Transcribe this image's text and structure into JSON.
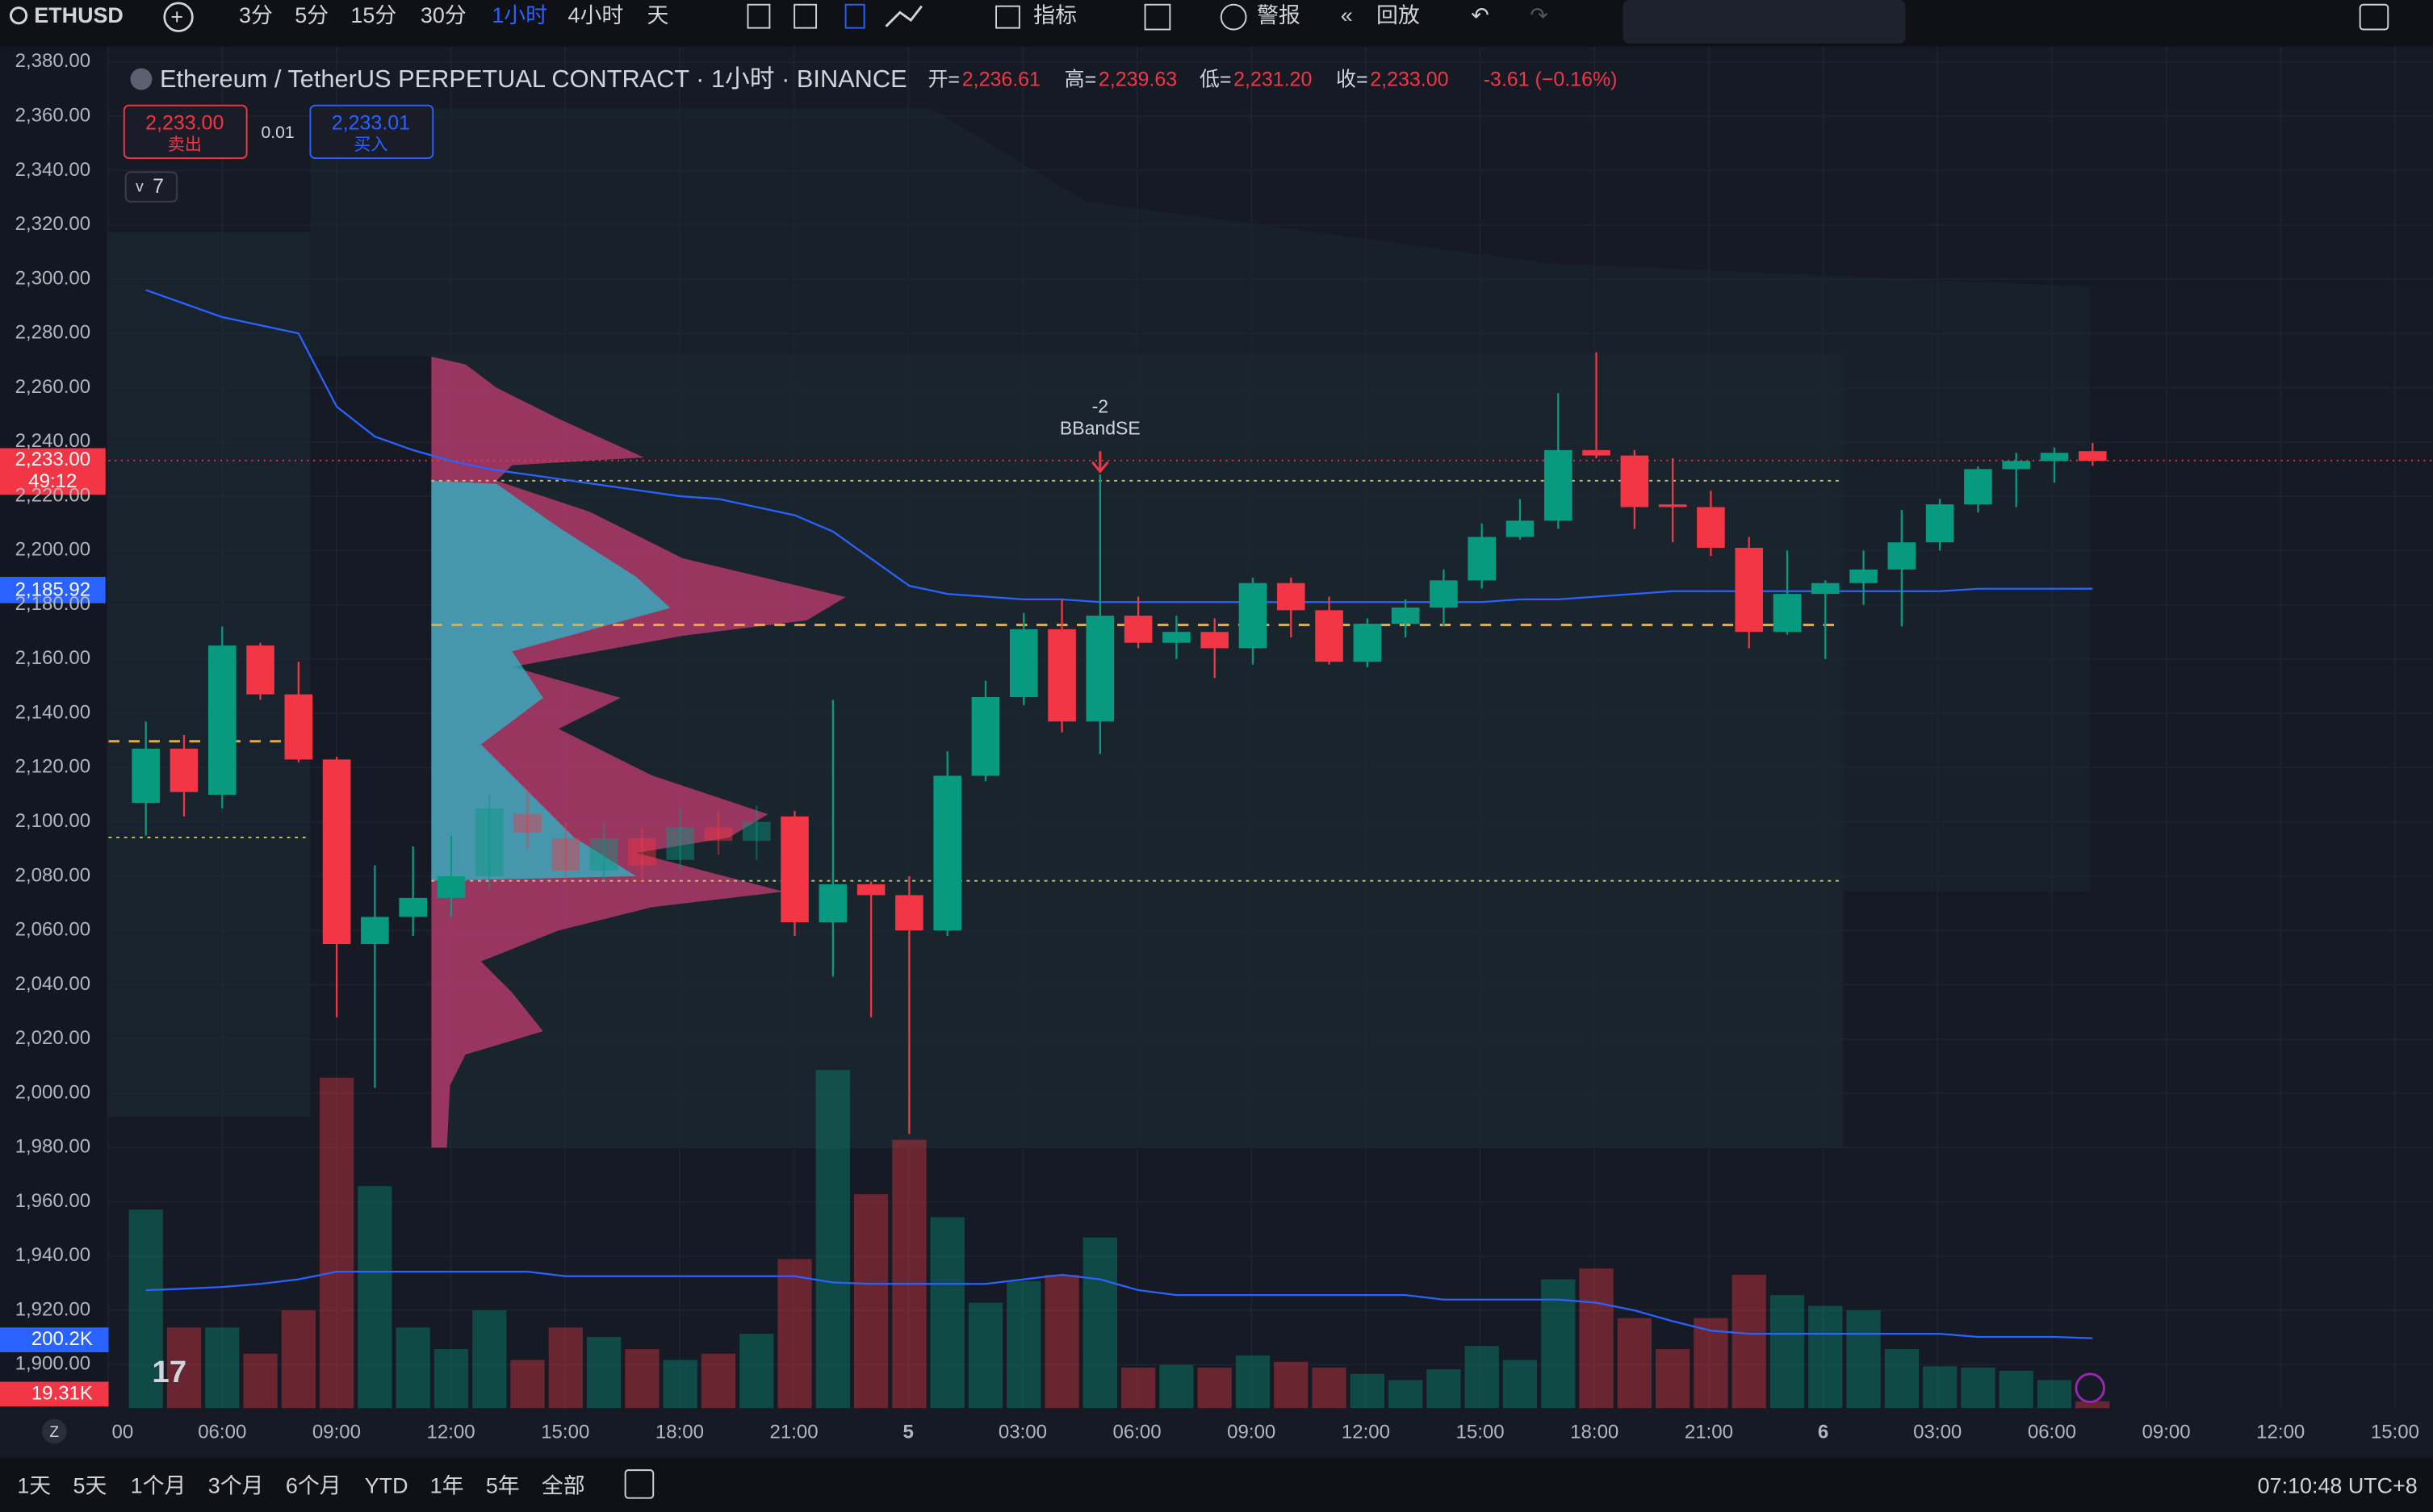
{
  "toolbar": {
    "symbol": "ETHUSD",
    "intervals": [
      "3分",
      "5分",
      "15分",
      "30分",
      "1小时",
      "4小时",
      "天"
    ],
    "indicators": "指标",
    "alert": "警报",
    "replay": "回放"
  },
  "legend": {
    "title": "Ethereum / TetherUS PERPETUAL CONTRACT · 1小时 · BINANCE",
    "open_label": "开=",
    "open": "2,236.61",
    "high_label": "高=",
    "high": "2,239.63",
    "low_label": "低=",
    "low": "2,231.20",
    "close_label": "收=",
    "close": "2,233.00",
    "change": "-3.61 (−0.16%)"
  },
  "order_panel": {
    "sell_price": "2,233.00",
    "sell": "卖出",
    "spread": "0.01",
    "buy_price": "2,233.01",
    "buy": "买入",
    "indicators_count": "7"
  },
  "annotation": {
    "value": "-2",
    "label": "BBandSE"
  },
  "price_labels": {
    "last": "2,233.00",
    "countdown": "49:12",
    "ma": "2,185.92",
    "volume_ma": "200.2K",
    "volume": "19.31K"
  },
  "chart_data": {
    "type": "candlestick",
    "ylim": [
      1900,
      2380
    ],
    "yticks": [
      {
        "value": 2380,
        "label": "2,380.00"
      },
      {
        "value": 2360,
        "label": "2,360.00"
      },
      {
        "value": 2340,
        "label": "2,340.00"
      },
      {
        "value": 2320,
        "label": "2,320.00"
      },
      {
        "value": 2300,
        "label": "2,300.00"
      },
      {
        "value": 2280,
        "label": "2,280.00"
      },
      {
        "value": 2260,
        "label": "2,260.00"
      },
      {
        "value": 2240,
        "label": "2,240.00"
      },
      {
        "value": 2220,
        "label": "2,220.00"
      },
      {
        "value": 2200,
        "label": "2,200.00"
      },
      {
        "value": 2180,
        "label": "2,180.00"
      },
      {
        "value": 2160,
        "label": "2,160.00"
      },
      {
        "value": 2140,
        "label": "2,140.00"
      },
      {
        "value": 2120,
        "label": "2,120.00"
      },
      {
        "value": 2100,
        "label": "2,100.00"
      },
      {
        "value": 2080,
        "label": "2,080.00"
      },
      {
        "value": 2060,
        "label": "2,060.00"
      },
      {
        "value": 2040,
        "label": "2,040.00"
      },
      {
        "value": 2020,
        "label": "2,020.00"
      },
      {
        "value": 2000,
        "label": "2,000.00"
      },
      {
        "value": 1980,
        "label": "1,980.00"
      },
      {
        "value": 1960,
        "label": "1,960.00"
      },
      {
        "value": 1940,
        "label": "1,940.00"
      },
      {
        "value": 1920,
        "label": "1,920.00"
      },
      {
        "value": 1900,
        "label": "1,900.00"
      }
    ],
    "xticks": [
      "00",
      "06:00",
      "09:00",
      "12:00",
      "15:00",
      "18:00",
      "21:00",
      "5",
      "03:00",
      "06:00",
      "09:00",
      "12:00",
      "15:00",
      "18:00",
      "21:00",
      "6",
      "03:00",
      "06:00",
      "09:00",
      "12:00",
      "15:00"
    ],
    "up_color": "#089981",
    "down_color": "#f23645",
    "ma_color": "#2962ff",
    "ohlc": [
      [
        2107,
        2137,
        2095,
        2127
      ],
      [
        2127,
        2132,
        2102,
        2111
      ],
      [
        2110,
        2172,
        2105,
        2165
      ],
      [
        2165,
        2166,
        2145,
        2147
      ],
      [
        2147,
        2159,
        2122,
        2123
      ],
      [
        2123,
        2124,
        2028,
        2055
      ],
      [
        2055,
        2084,
        2002,
        2065
      ],
      [
        2065,
        2091,
        2058,
        2072
      ],
      [
        2072,
        2095,
        2065,
        2080
      ],
      [
        2080,
        2110,
        2075,
        2105
      ],
      [
        2103,
        2112,
        2090,
        2096
      ],
      [
        2094,
        2100,
        2078,
        2082
      ],
      [
        2082,
        2100,
        2078,
        2094
      ],
      [
        2094,
        2098,
        2078,
        2084
      ],
      [
        2086,
        2105,
        2082,
        2098
      ],
      [
        2098,
        2104,
        2088,
        2093
      ],
      [
        2093,
        2106,
        2086,
        2100
      ],
      [
        2102,
        2104,
        2058,
        2063
      ],
      [
        2063,
        2145,
        2043,
        2077
      ],
      [
        2077,
        2078,
        2028,
        2073
      ],
      [
        2073,
        2080,
        1985,
        2060
      ],
      [
        2060,
        2126,
        2058,
        2117
      ],
      [
        2117,
        2152,
        2115,
        2146
      ],
      [
        2146,
        2177,
        2143,
        2171
      ],
      [
        2171,
        2182,
        2133,
        2137
      ],
      [
        2137,
        2228,
        2125,
        2176
      ],
      [
        2176,
        2183,
        2164,
        2166
      ],
      [
        2166,
        2176,
        2160,
        2170
      ],
      [
        2170,
        2175,
        2153,
        2164
      ],
      [
        2164,
        2190,
        2158,
        2188
      ],
      [
        2188,
        2190,
        2168,
        2178
      ],
      [
        2178,
        2183,
        2158,
        2159
      ],
      [
        2159,
        2175,
        2157,
        2173
      ],
      [
        2173,
        2182,
        2168,
        2179
      ],
      [
        2179,
        2193,
        2172,
        2189
      ],
      [
        2189,
        2210,
        2186,
        2205
      ],
      [
        2205,
        2219,
        2204,
        2211
      ],
      [
        2211,
        2258,
        2208,
        2237
      ],
      [
        2237,
        2273,
        2234,
        2235
      ],
      [
        2235,
        2237,
        2208,
        2216
      ],
      [
        2217,
        2234,
        2203,
        2216
      ],
      [
        2216,
        2222,
        2198,
        2201
      ],
      [
        2201,
        2205,
        2164,
        2170
      ],
      [
        2170,
        2200,
        2169,
        2184
      ],
      [
        2184,
        2189,
        2160,
        2188
      ],
      [
        2188,
        2200,
        2180,
        2193
      ],
      [
        2193,
        2215,
        2172,
        2203
      ],
      [
        2203,
        2219,
        2200,
        2217
      ],
      [
        2217,
        2231,
        2214,
        2230
      ],
      [
        2230,
        2236,
        2216,
        2233
      ],
      [
        2233,
        2238,
        2225,
        2236
      ],
      [
        2236.61,
        2239.63,
        2231.2,
        2233.0
      ]
    ],
    "ma": [
      2296,
      2291,
      2286,
      2283,
      2280,
      2253,
      2242,
      2237,
      2233,
      2230,
      2228,
      2226,
      2224,
      2222,
      2220,
      2219,
      2216,
      2213,
      2207,
      2197,
      2187,
      2184,
      2183,
      2182,
      2182,
      2181,
      2181,
      2181,
      2181,
      2181,
      2181,
      2181,
      2181,
      2181,
      2181,
      2181,
      2182,
      2182,
      2183,
      2184,
      2185,
      2185,
      2185,
      2185,
      2185,
      2185,
      2185,
      2185,
      2185.9,
      2185.9,
      2185.9,
      2185.92
    ],
    "volume_ylim": [
      0,
      1000
    ],
    "volume": [
      569,
      231,
      231,
      156,
      280,
      947,
      636,
      231,
      169,
      280,
      138,
      231,
      204,
      169,
      138,
      156,
      213,
      427,
      969,
      613,
      769,
      547,
      302,
      364,
      382,
      489,
      116,
      124,
      116,
      151,
      133,
      116,
      98,
      80,
      111,
      178,
      138,
      369,
      400,
      258,
      169,
      258,
      382,
      324,
      293,
      280,
      169,
      120,
      116,
      107,
      80,
      19.31
    ],
    "volume_ma": [
      338,
      342,
      347,
      356,
      369,
      391,
      391,
      391,
      391,
      391,
      391,
      378,
      378,
      378,
      378,
      378,
      378,
      378,
      360,
      356,
      356,
      356,
      356,
      369,
      382,
      369,
      338,
      324,
      324,
      324,
      324,
      324,
      324,
      324,
      311,
      311,
      311,
      311,
      302,
      280,
      249,
      222,
      213,
      213,
      213,
      213,
      213,
      213,
      204,
      204,
      204,
      200.2
    ]
  },
  "bottom_bar": {
    "ranges": [
      "1天",
      "5天",
      "1个月",
      "3个月",
      "6个月",
      "YTD",
      "1年",
      "5年",
      "全部"
    ],
    "clock": "07:10:48 UTC+8",
    "zoom": "Z"
  }
}
